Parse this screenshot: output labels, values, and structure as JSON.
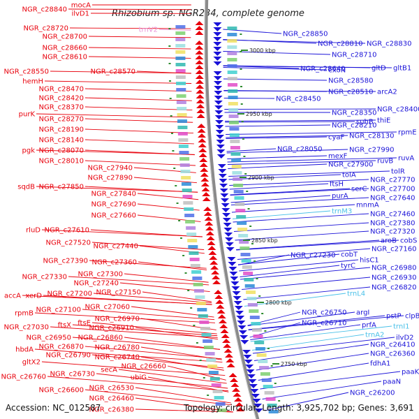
{
  "header": {
    "title": "Rhizobium sp. NGR234, complete genome"
  },
  "footer": {
    "accession": "Accession: NC_012587",
    "summary": "Topology: circular; Length: 3,925,702 bp; Genes: 3,691"
  },
  "colors": {
    "forward_strand": "#e8000b",
    "reverse_strand": "#1a12d8",
    "rna": "#48c0e8",
    "trnv": "#e890d8",
    "backbone": "#8a8a8a",
    "tick": "#2e8b2e"
  },
  "scale_marks": [
    "3000 kbp",
    "2950 kbp",
    "2900 kbp",
    "2850 kbp",
    "2800 kbp",
    "2750 kbp"
  ],
  "left_labels": [
    "mocA",
    "ilvD1",
    "NGR_c28840",
    "NGR_c28720",
    "trnV2",
    "NGR_c28700",
    "NGR_c28660",
    "NGR_c28610",
    "NGR_c28550",
    "NGR_c28570",
    "hemH",
    "NGR_c28470",
    "NGR_c28420",
    "NGR_c28370",
    "purK",
    "NGR_c28270",
    "NGR_c28190",
    "NGR_c28140",
    "pgk",
    "NGR_c28070",
    "NGR_c28010",
    "NGR_c27940",
    "NGR_c27890",
    "sqdB",
    "NGR_c27850",
    "NGR_c27840",
    "NGR_c27690",
    "NGR_c27660",
    "rluD",
    "NGR_c27610",
    "NGR_c27520",
    "NGR_c27440",
    "NGR_c27390",
    "NGR_c27360",
    "NGR_c27330",
    "NGR_c27300",
    "NGR_c27240",
    "accA",
    "xerD",
    "NGR_c27200",
    "NGR_c27150",
    "rpmB",
    "NGR_c27100",
    "NGR_c27060",
    "NGR_c27030",
    "ftsX",
    "ftsE",
    "NGR_c26970",
    "NGR_c26910",
    "NGR_c26950",
    "NGR_c26860",
    "NGR_c26870",
    "NGR_c26780",
    "hbdA",
    "NGR_c26790",
    "NGR_c26740",
    "gltX2",
    "secA",
    "NGR_c26660",
    "NGR_c26760",
    "NGR_c26730",
    "ubiG",
    "NGR_c26600",
    "NGR_c26530",
    "NGR_c26460",
    "NGR_c26380"
  ],
  "right_labels": [
    "NGR_c28850",
    "NGR_c28810",
    "NGR_c28830",
    "NGR_c28710",
    "NGR_c28640",
    "exoN",
    "gltD",
    "gltB1",
    "NGR_c28580",
    "NGR_c28510",
    "arcA2",
    "NGR_c28450",
    "NGR_c28350",
    "NGR_c28400",
    "suhB",
    "thiE",
    "NGR_c28210",
    "cyaF",
    "NGR_c28130",
    "rpmE",
    "NGR_c28050",
    "mexF",
    "NGR_c27990",
    "ruvB",
    "ruvA",
    "NGR_c27900",
    "tolA",
    "tolR",
    "ftsH",
    "NGR_c27770",
    "serC",
    "NGR_c27700",
    "purA",
    "NGR_c27640",
    "mnmA",
    "trnM3",
    "NGR_c27460",
    "NGR_c27380",
    "NGR_c27320",
    "aroB",
    "cobS",
    "NGR_c27230",
    "cobT",
    "NGR_c27160",
    "hisC1",
    "tyrC",
    "NGR_c26980",
    "NGR_c26930",
    "NGR_c26820",
    "trnL4",
    "NGR_c26750",
    "argI",
    "pstP",
    "clpB",
    "NGR_c26710",
    "prfA",
    "trnI1",
    "trnA2",
    "ilvD2",
    "NGR_c26410",
    "NGR_c26360",
    "fdhA1",
    "paaK",
    "paaN",
    "NGR_c26200"
  ]
}
